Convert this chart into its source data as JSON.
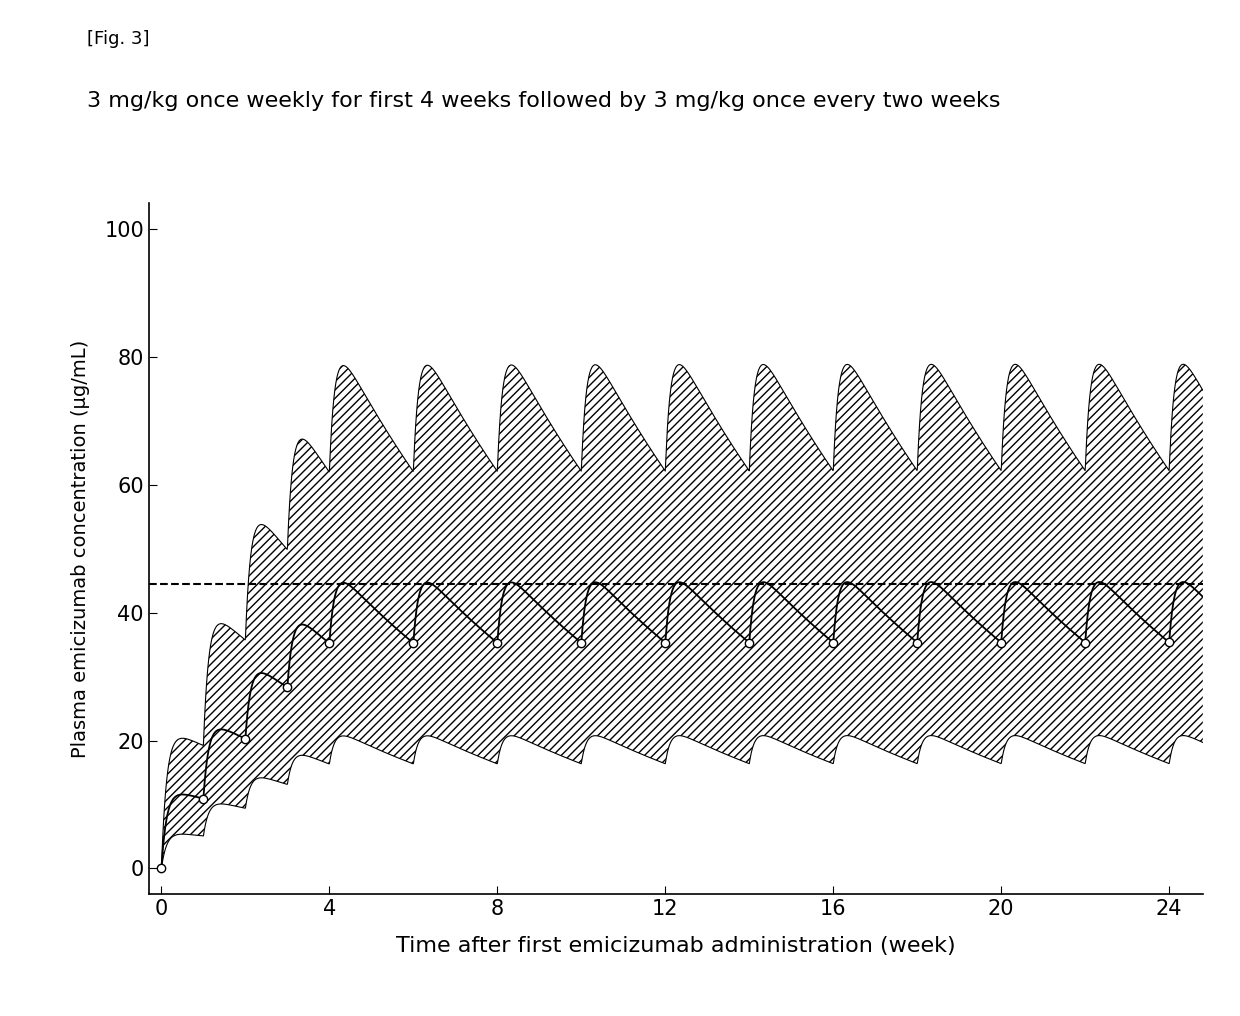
{
  "fig_label": "[Fig. 3]",
  "title": "3 mg/kg once weekly for first 4 weeks followed by 3 mg/kg once every two weeks",
  "xlabel": "Time after first emicizumab administration (week)",
  "ylabel": "Plasma emicizumab concentration (μg/mL)",
  "xlim": [
    -0.3,
    24.8
  ],
  "ylim": [
    -4,
    104
  ],
  "xticks": [
    0,
    4,
    8,
    12,
    16,
    20,
    24
  ],
  "yticks": [
    0,
    20,
    40,
    60,
    80,
    100
  ],
  "dashed_line_y": 44.5,
  "loading_times": [
    0,
    1,
    2,
    3
  ],
  "maintenance_times": [
    4,
    6,
    8,
    10,
    12,
    14,
    16,
    18,
    20,
    22,
    24
  ],
  "scale_median": 12.5,
  "scale_upper": 22.0,
  "scale_lower": 5.8,
  "ka": 8.0,
  "ke": 0.154,
  "circle_times": [
    0,
    1,
    2,
    3,
    4,
    6,
    8,
    10,
    12,
    14,
    16,
    18,
    20,
    22,
    24
  ]
}
